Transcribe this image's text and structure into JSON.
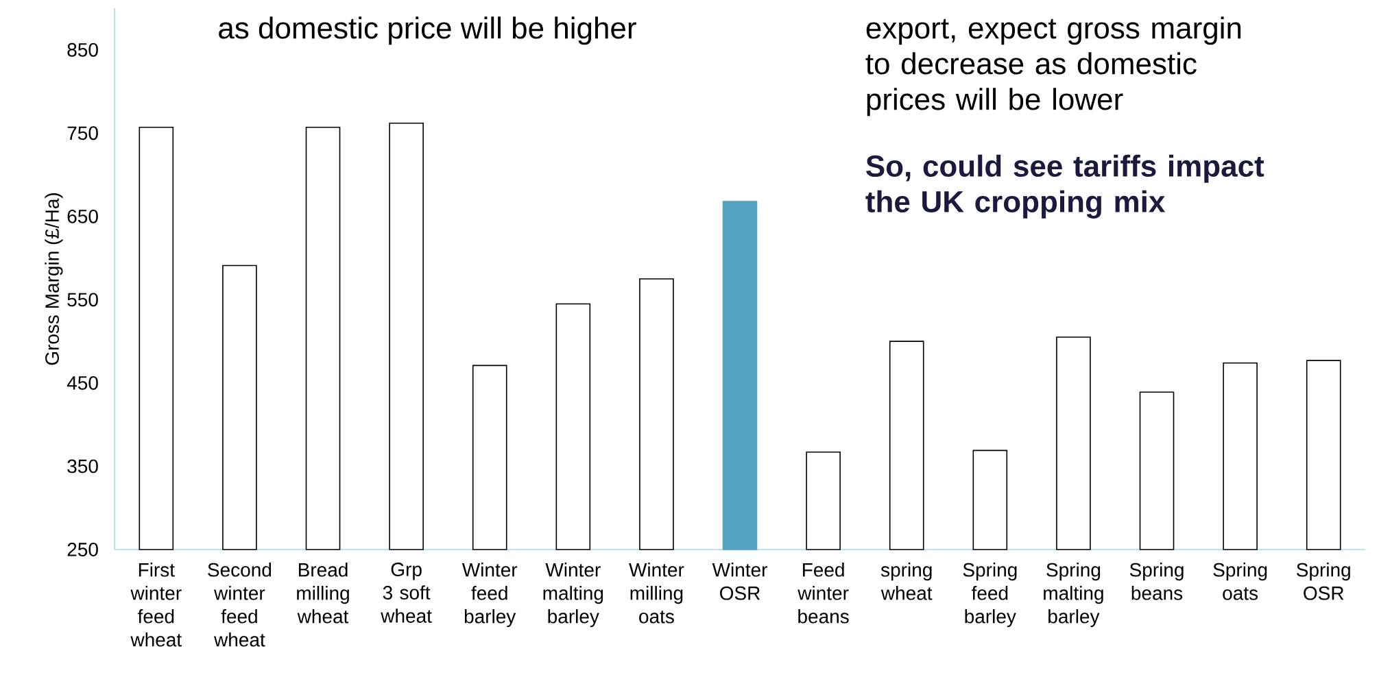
{
  "chart_data": {
    "type": "bar",
    "ylabel": "Gross Margin (£/Ha)",
    "categories": [
      "First winter feed wheat",
      "Second winter feed wheat",
      "Bread milling wheat",
      "Grp 3 soft wheat",
      "Winter feed barley",
      "Winter malting barley",
      "Winter milling oats",
      "Winter OSR",
      "Feed winter beans",
      "spring wheat",
      "Spring feed barley",
      "Spring malting barley",
      "Spring beans",
      "Spring oats",
      "Spring OSR"
    ],
    "values": [
      757,
      591,
      757,
      762,
      471,
      545,
      575,
      668,
      367,
      500,
      369,
      505,
      439,
      474,
      477
    ],
    "colors": [
      "#ffffff",
      "#ffffff",
      "#ffffff",
      "#ffffff",
      "#ffffff",
      "#ffffff",
      "#ffffff",
      "#52a3bf",
      "#ffffff",
      "#ffffff",
      "#ffffff",
      "#ffffff",
      "#ffffff",
      "#ffffff",
      "#ffffff"
    ],
    "ylim": [
      250,
      900
    ],
    "yticks": [
      250,
      350,
      450,
      550,
      650,
      750,
      850
    ],
    "grid": false,
    "annotations": [
      "as domestic price will be higher",
      "export, expect gross margin to decrease as domestic prices will be lower",
      "So, could see tariffs impact the UK cropping mix"
    ]
  }
}
